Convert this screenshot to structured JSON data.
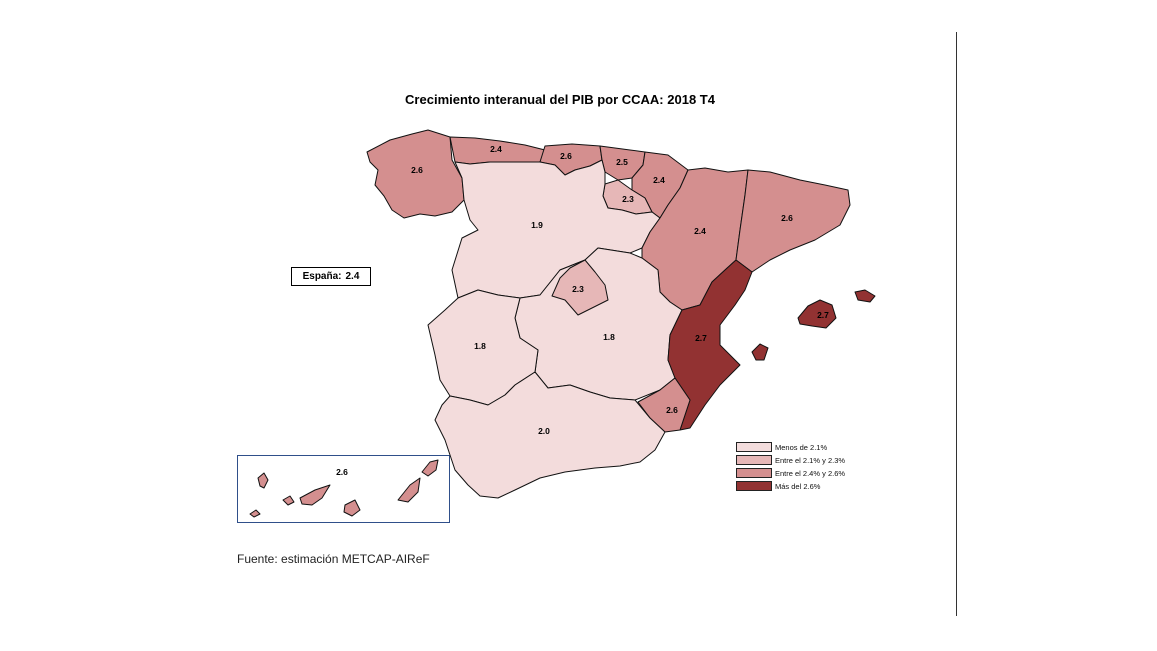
{
  "title": "Crecimiento interanual del PIB por CCAA: 2018 T4",
  "spain_summary": {
    "label": "España:",
    "value": "2.4"
  },
  "source": "Fuente: estimación METCAP-AIReF",
  "legend": [
    {
      "label": "Menos de 2.1%",
      "color": "#f3dcdc"
    },
    {
      "label": "Entre el 2.1% y 2.3%",
      "color": "#e6b7b7"
    },
    {
      "label": "Entre el 2.4% y 2.6%",
      "color": "#d48f8f"
    },
    {
      "label": "Más del 2.6%",
      "color": "#923232"
    }
  ],
  "regions": [
    {
      "name": "Galicia",
      "value": "2.6",
      "class": 2
    },
    {
      "name": "Asturias",
      "value": "2.4",
      "class": 2
    },
    {
      "name": "Cantabria",
      "value": "2.6",
      "class": 2
    },
    {
      "name": "País Vasco",
      "value": "2.5",
      "class": 2
    },
    {
      "name": "Navarra",
      "value": "2.4",
      "class": 2
    },
    {
      "name": "La Rioja",
      "value": "2.3",
      "class": 1
    },
    {
      "name": "Castilla y León",
      "value": "1.9",
      "class": 0
    },
    {
      "name": "Aragón",
      "value": "2.4",
      "class": 2
    },
    {
      "name": "Cataluña",
      "value": "2.6",
      "class": 2
    },
    {
      "name": "Madrid",
      "value": "2.3",
      "class": 1
    },
    {
      "name": "Extremadura",
      "value": "1.8",
      "class": 0
    },
    {
      "name": "Castilla-La Mancha",
      "value": "1.8",
      "class": 0
    },
    {
      "name": "Comunitat Valenciana",
      "value": "2.7",
      "class": 3
    },
    {
      "name": "Illes Balears",
      "value": "2.7",
      "class": 3
    },
    {
      "name": "Región de Murcia",
      "value": "2.6",
      "class": 2
    },
    {
      "name": "Andalucía",
      "value": "2.0",
      "class": 0
    },
    {
      "name": "Canarias",
      "value": "2.6",
      "class": 2
    }
  ]
}
